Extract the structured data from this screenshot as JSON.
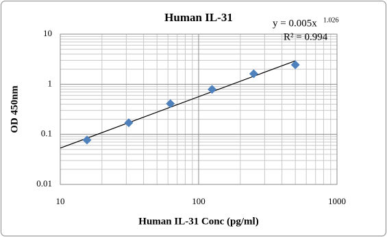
{
  "chart_data": {
    "type": "scatter",
    "title": "Human IL-31",
    "x_label": "Human IL-31 Conc (pg/ml)",
    "y_label": "OD 450nm",
    "x": [
      15.6,
      31.25,
      62.5,
      125,
      250,
      500
    ],
    "values": [
      0.077,
      0.17,
      0.41,
      0.79,
      1.62,
      2.44
    ],
    "color": "#4f81bd",
    "log_x": true,
    "log_y": true,
    "xlim": [
      10,
      1000
    ],
    "ylim": [
      0.01,
      10
    ],
    "xticks": [
      10,
      100,
      1000
    ],
    "yticks": [
      0.01,
      0.1,
      1,
      10
    ],
    "x_minor_ticks": [
      20,
      30,
      40,
      50,
      60,
      70,
      80,
      90,
      200,
      300,
      400,
      500,
      600,
      700,
      800,
      900
    ],
    "y_minor_ticks": [
      0.02,
      0.03,
      0.04,
      0.05,
      0.06,
      0.07,
      0.08,
      0.09,
      0.2,
      0.3,
      0.4,
      0.5,
      0.6,
      0.7,
      0.8,
      0.9,
      2,
      3,
      4,
      5,
      6,
      7,
      8,
      9
    ],
    "grid": true,
    "trendline": {
      "coefficient": 0.005,
      "exponent": 1.026,
      "equation_label": "y = 0.005x",
      "exponent_label": "1.026",
      "r_squared_label": "R² = 0.994",
      "color": "#000000"
    }
  }
}
